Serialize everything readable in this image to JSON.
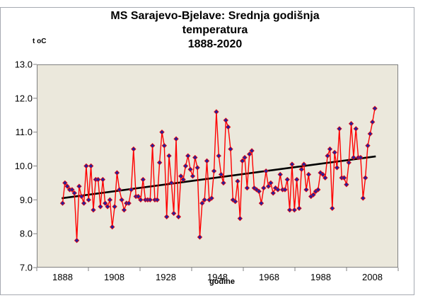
{
  "chart_data": {
    "type": "line",
    "title_lines": [
      "MS Sarajevo-Bjelave: Srednja godišnja",
      "temperatura",
      "1888-2020"
    ],
    "y_axis_unit_label": "t oC",
    "x_axis_label": "godine",
    "ylim": [
      7.0,
      13.0
    ],
    "y_tick_step": 1.0,
    "y_tick_labels": [
      "13.0",
      "12.0",
      "11.0",
      "10.0",
      "9.0",
      "8.0",
      "7.0"
    ],
    "x_tick_labels": [
      "1888",
      "1908",
      "1928",
      "1948",
      "1968",
      "1988",
      "2008"
    ],
    "x_range_years": [
      1888,
      2020
    ],
    "grid": "off",
    "legend": "none",
    "plot_background": "#ebe8dc",
    "axis_color": "#808080",
    "frame_color": "#a6aab2",
    "series": [
      {
        "name": "Srednja godišnja temperatura",
        "line_color": "#ff0000",
        "marker": "diamond",
        "marker_color": "#2a1f96",
        "start_year": 1888,
        "values": [
          8.9,
          9.5,
          9.4,
          9.3,
          9.3,
          9.2,
          7.8,
          9.4,
          9.1,
          8.9,
          10.0,
          9.0,
          10.0,
          8.7,
          9.6,
          9.6,
          8.8,
          9.6,
          8.9,
          8.8,
          9.0,
          8.2,
          8.8,
          9.8,
          9.3,
          9.0,
          8.7,
          8.9,
          8.9,
          9.3,
          10.5,
          9.1,
          9.1,
          9.0,
          9.6,
          9.0,
          9.0,
          9.0,
          10.6,
          9.0,
          9.0,
          10.1,
          11.0,
          10.6,
          8.5,
          10.3,
          9.5,
          8.6,
          10.8,
          8.5,
          9.7,
          9.6,
          10.0,
          10.3,
          9.9,
          9.7,
          10.25,
          9.95,
          7.9,
          8.9,
          9.0,
          10.15,
          9.0,
          9.05,
          9.85,
          11.6,
          10.3,
          9.75,
          9.5,
          11.35,
          11.15,
          10.5,
          9.0,
          8.95,
          9.55,
          8.45,
          10.15,
          10.25,
          9.35,
          10.35,
          10.45,
          9.35,
          9.3,
          9.25,
          8.9,
          9.35,
          9.85,
          9.4,
          9.5,
          9.2,
          9.35,
          9.3,
          9.75,
          9.3,
          9.3,
          9.6,
          8.7,
          10.05,
          8.7,
          9.6,
          8.75,
          9.9,
          10.05,
          9.3,
          9.75,
          9.1,
          9.15,
          9.25,
          9.3,
          9.8,
          9.75,
          9.65,
          10.3,
          10.5,
          8.75,
          10.4,
          9.95,
          11.1,
          9.65,
          9.65,
          9.45,
          10.1,
          11.25,
          10.25,
          11.1,
          10.25,
          10.25,
          9.05,
          9.65,
          10.6,
          10.95,
          11.3,
          11.7
        ]
      }
    ],
    "trend_line": {
      "color": "#000000",
      "start_year": 1888,
      "start_value": 9.05,
      "end_year": 2020,
      "end_value": 10.28
    }
  }
}
